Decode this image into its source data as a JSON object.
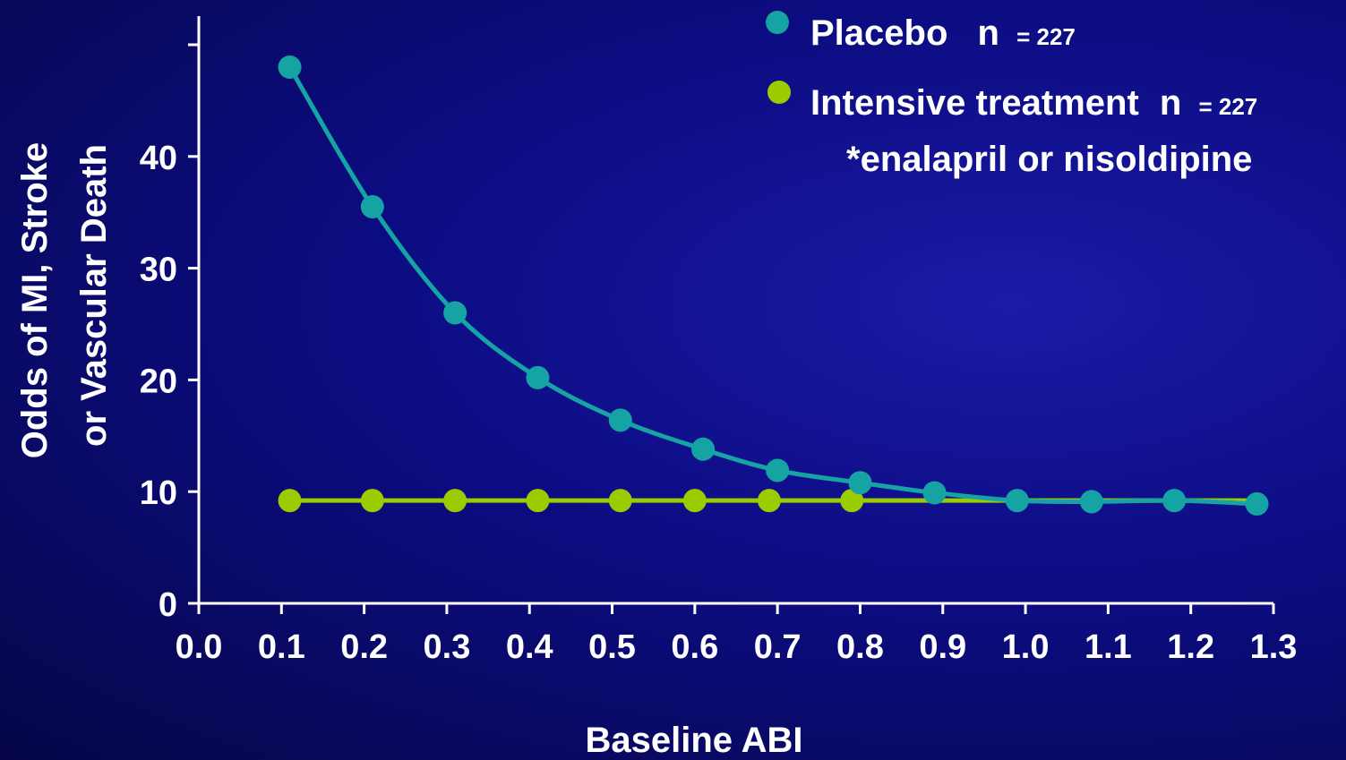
{
  "colors": {
    "background": "#0c0c82",
    "placebo": "#16a3a3",
    "intensive": "#9ccc00",
    "axis": "#ffffff",
    "text": "#ffffff"
  },
  "chart_data": {
    "type": "line",
    "xlabel": "Baseline ABI",
    "ylabel_lines": [
      "Odds of MI, Stroke",
      "or Vascular Death"
    ],
    "xlim": [
      0.0,
      1.3
    ],
    "ylim": [
      0,
      50
    ],
    "x_ticks": [
      0.0,
      0.1,
      0.2,
      0.3,
      0.4,
      0.5,
      0.6,
      0.7,
      0.8,
      0.9,
      1.0,
      1.1,
      1.2,
      1.3
    ],
    "x_tick_labels": [
      "0.0",
      "0.1",
      "0.2",
      "0.3",
      "0.4",
      "0.5",
      "0.6",
      "0.7",
      "0.8",
      "0.9",
      "1.0",
      "1.1",
      "1.2",
      "1.3"
    ],
    "y_ticks": [
      0,
      10,
      20,
      30,
      40,
      50
    ],
    "y_tick_labels": [
      "0",
      "10",
      "20",
      "30",
      "40",
      ""
    ],
    "grid": false,
    "legend_position": "top-right",
    "series": [
      {
        "name_main": "Placebo",
        "n_label": "n",
        "n_value": "= 227",
        "color": "#16a3a3",
        "smooth": true,
        "x": [
          0.11,
          0.21,
          0.31,
          0.41,
          0.51,
          0.61,
          0.7,
          0.8,
          0.89,
          0.99,
          1.08,
          1.18,
          1.28
        ],
        "y": [
          48.0,
          35.5,
          26.0,
          20.2,
          16.4,
          13.8,
          11.9,
          10.8,
          9.9,
          9.2,
          9.1,
          9.2,
          8.9
        ]
      },
      {
        "name_main": "Intensive treatment",
        "n_label": "n",
        "n_value": "= 227",
        "note": "*enalapril or nisoldipine",
        "color": "#9ccc00",
        "smooth": false,
        "x": [
          0.11,
          0.21,
          0.31,
          0.41,
          0.51,
          0.6,
          0.69,
          0.79
        ],
        "y": [
          9.2,
          9.2,
          9.2,
          9.2,
          9.2,
          9.2,
          9.2,
          9.2
        ],
        "line_end_x": 1.28
      }
    ]
  }
}
